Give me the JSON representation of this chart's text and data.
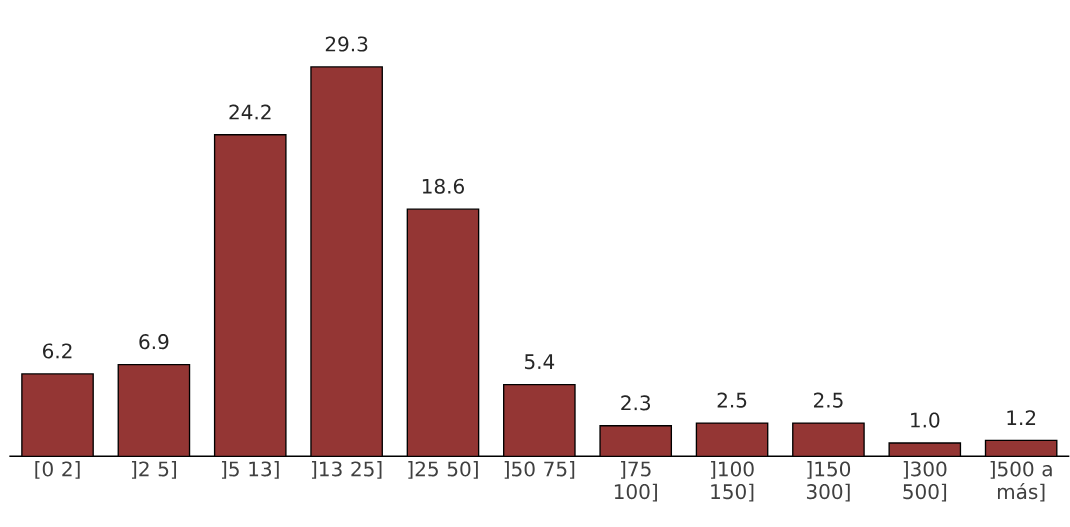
{
  "chart_data": {
    "type": "bar",
    "categories": [
      "[0 2]",
      "]2 5]",
      "]5 13]",
      "]13 25]",
      "]25 50]",
      "]50 75]",
      "]75 100]",
      "]100 150]",
      "]150 300]",
      "]300 500]",
      "]500 a más]"
    ],
    "values": [
      6.2,
      6.9,
      24.2,
      29.3,
      18.6,
      5.4,
      2.3,
      2.5,
      2.5,
      1.0,
      1.2
    ],
    "value_labels": [
      "6.2",
      "6.9",
      "24.2",
      "29.3",
      "18.6",
      "5.4",
      "2.3",
      "2.5",
      "2.5",
      "1.0",
      "1.2"
    ],
    "color": "#943634"
  }
}
